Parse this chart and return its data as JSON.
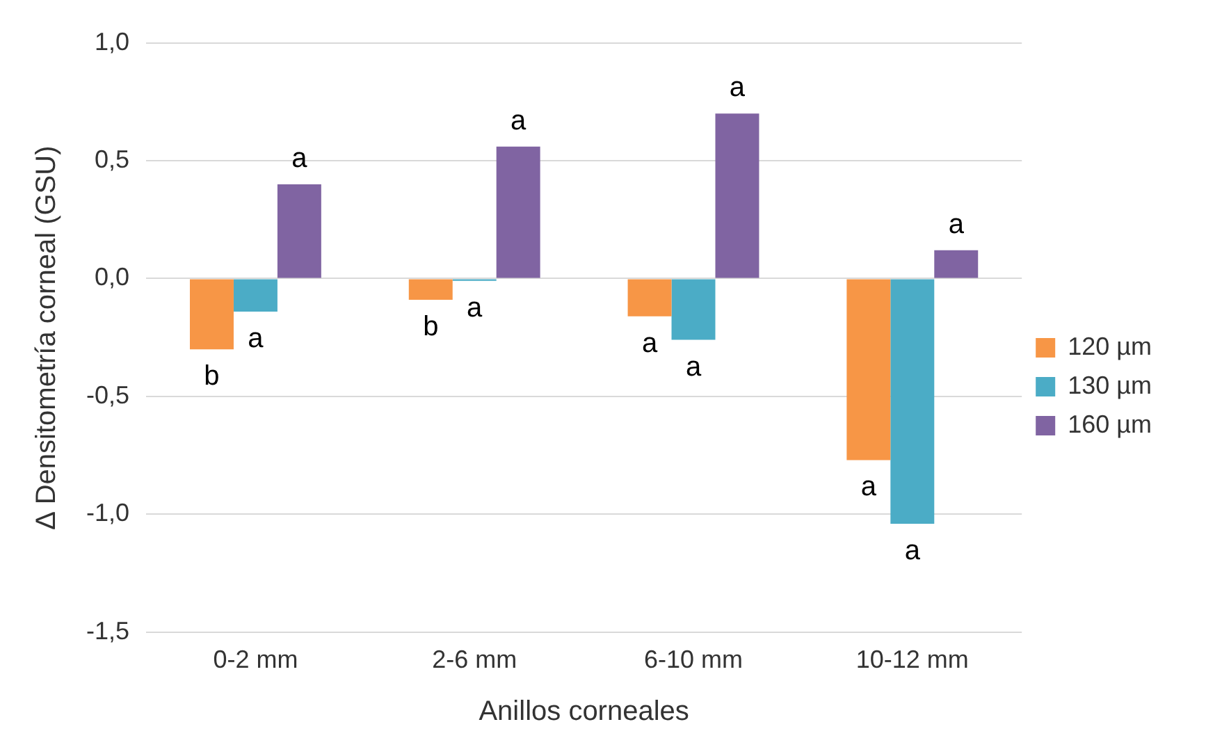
{
  "chart_data": {
    "type": "bar",
    "ylabel": "∆ Densitometría corneal (GSU)",
    "xlabel": "Anillos corneales",
    "categories": [
      "0-2 mm",
      "2-6 mm",
      "6-10 mm",
      "10-12 mm"
    ],
    "series": [
      {
        "name": "120 µm",
        "color": "#f79646",
        "values": [
          -0.3,
          -0.09,
          -0.16,
          -0.77
        ],
        "value_labels": [
          "b",
          "b",
          "a",
          "a"
        ]
      },
      {
        "name": "130 µm",
        "color": "#4bacc6",
        "values": [
          -0.14,
          -0.01,
          -0.26,
          -1.04
        ],
        "value_labels": [
          "a",
          "a",
          "a",
          "a"
        ]
      },
      {
        "name": "160 µm",
        "color": "#8064a2",
        "values": [
          0.4,
          0.56,
          0.7,
          0.12
        ],
        "value_labels": [
          "a",
          "a",
          "a",
          "a"
        ]
      }
    ],
    "ylim": [
      -1.5,
      1.0
    ],
    "yticks": [
      {
        "value": -1.5,
        "label": "-1,5"
      },
      {
        "value": -1,
        "label": "-1,0"
      },
      {
        "value": -0.5,
        "label": "-0,5"
      },
      {
        "value": 0,
        "label": "0,0"
      },
      {
        "value": 0.5,
        "label": "0,5"
      },
      {
        "value": 1,
        "label": "1,0"
      }
    ],
    "grid": "y",
    "legend": "right"
  }
}
